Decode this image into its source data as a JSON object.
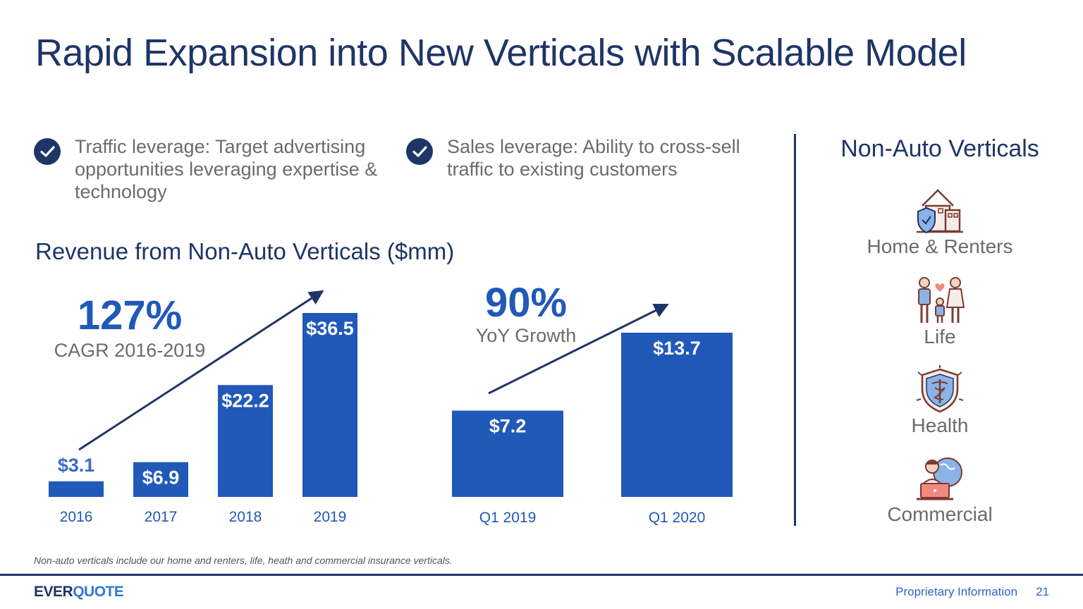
{
  "title": "Rapid Expansion into New Verticals with Scalable Model",
  "bullets": [
    {
      "text": "Traffic leverage: Target advertising opportunities leveraging expertise & technology"
    },
    {
      "text": "Sales leverage: Ability to cross-sell traffic to existing customers"
    }
  ],
  "subtitle": "Revenue from Non-Auto Verticals ($mm)",
  "callouts": {
    "cagr_value": "127%",
    "cagr_label": "CAGR 2016-2019",
    "yoy_value": "90%",
    "yoy_label": "YoY Growth"
  },
  "chart_data": [
    {
      "type": "bar",
      "title": "",
      "categories": [
        "2016",
        "2017",
        "2018",
        "2019"
      ],
      "values": [
        3.1,
        6.9,
        22.2,
        36.5
      ],
      "data_labels": [
        "$3.1",
        "$6.9",
        "$22.2",
        "$36.5"
      ],
      "xlabel": "",
      "ylabel": "",
      "ylim": [
        0,
        36.5
      ],
      "grid": false,
      "legend": "none",
      "color": "#2159b9",
      "trend_arrow": true
    },
    {
      "type": "bar",
      "title": "",
      "categories": [
        "Q1 2019",
        "Q1 2020"
      ],
      "values": [
        7.2,
        13.7
      ],
      "data_labels": [
        "$7.2",
        "$13.7"
      ],
      "xlabel": "",
      "ylabel": "",
      "ylim": [
        0,
        13.7
      ],
      "grid": false,
      "legend": "none",
      "color": "#2159b9",
      "trend_arrow": true
    }
  ],
  "non_auto": {
    "title": "Non-Auto Verticals",
    "items": [
      {
        "label": "Home & Renters",
        "icon": "house-shield-icon"
      },
      {
        "label": "Life",
        "icon": "family-heart-icon"
      },
      {
        "label": "Health",
        "icon": "caduceus-shield-icon"
      },
      {
        "label": "Commercial",
        "icon": "laptop-globe-icon"
      }
    ]
  },
  "footnote": "Non-auto verticals include our home and renters, life, heath and commercial insurance verticals.",
  "footer": {
    "logo_part1": "EVER",
    "logo_part2": "QUOTE",
    "proprietary": "Proprietary Information",
    "page_number": "21"
  },
  "colors": {
    "navy": "#1f3566",
    "bar_blue": "#2159b9",
    "gray_text": "#6b6b6b",
    "accent_red": "#c0564a"
  }
}
